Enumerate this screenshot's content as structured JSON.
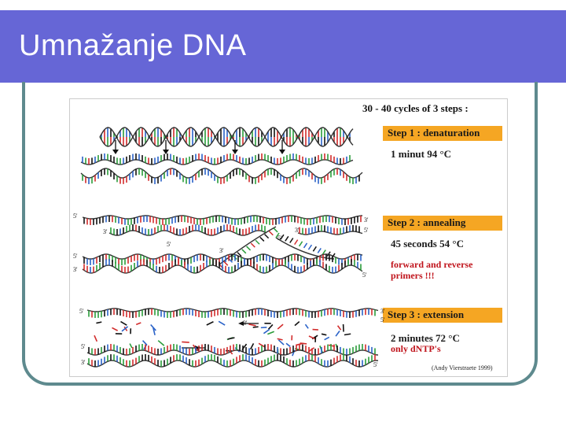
{
  "slide": {
    "title": "Umnažanje DNA"
  },
  "figure": {
    "header": "30 - 40 cycles of 3 steps :",
    "steps": [
      {
        "label": "Step 1 : denaturation",
        "conditions": [
          "1 minut 94 °C"
        ]
      },
      {
        "label": "Step 2 : annealing",
        "conditions": [
          "45 seconds 54 °C"
        ],
        "note": [
          "forward and reverse",
          "primers !!!"
        ]
      },
      {
        "label": "Step 3 : extension",
        "conditions": [
          "2 minutes 72 °C"
        ],
        "note": [
          "only dNTP's"
        ]
      }
    ],
    "strand_ends": {
      "five": "5'",
      "three": "3'"
    },
    "credit": "(Andy Vierstraete 1999)"
  },
  "colors": {
    "title_bar": "#6666d6",
    "frame": "#5e8a8e",
    "step_box": "#f5a623",
    "note_text": "#c0141c",
    "strand": "#333333",
    "base_colors": [
      "#d22c2c",
      "#2a9d3a",
      "#2a62c8",
      "#111111"
    ]
  }
}
